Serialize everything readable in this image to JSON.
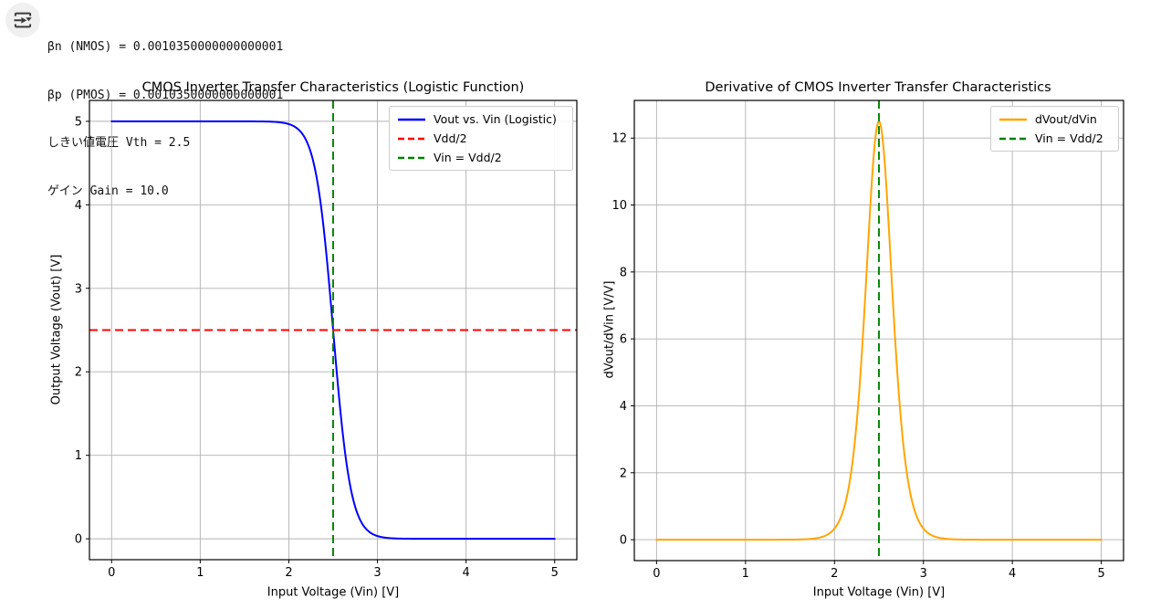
{
  "header": {
    "icon": "run-cell-icon",
    "lines": [
      "βn (NMOS) = 0.0010350000000000001",
      "βp (PMOS) = 0.0010350000000000001",
      "しきい値電圧 Vth = 2.5",
      "ゲイン Gain = 10.0"
    ]
  },
  "colors": {
    "vout_curve": "#0000ff",
    "vdd_half_line": "#ff0000",
    "vin_marker_line": "#008000",
    "derivative_curve": "#ffa500",
    "gridline": "#b0b0b0",
    "spine": "#000000",
    "icon_button_bg": "#f0f0f0",
    "icon_glyph": "#3c3c3c"
  },
  "chart_data": [
    {
      "type": "line",
      "title": "CMOS Inverter Transfer Characteristics (Logistic Function)",
      "xlabel": "Input Voltage (Vin) [V]",
      "ylabel": "Output Voltage (Vout) [V]",
      "xlim": [
        -0.25,
        5.25
      ],
      "ylim": [
        -0.25,
        5.25
      ],
      "xticks": [
        0,
        1,
        2,
        3,
        4,
        5
      ],
      "yticks": [
        0,
        1,
        2,
        3,
        4,
        5
      ],
      "xtick_labels": [
        "0",
        "1",
        "2",
        "3",
        "4",
        "5"
      ],
      "ytick_labels": [
        "0",
        "1",
        "2",
        "3",
        "4",
        "5"
      ],
      "grid": true,
      "legend_position": "upper right",
      "series": [
        {
          "name": "Vout vs. Vin (Logistic)",
          "color": "#0000ff",
          "style": "solid",
          "kind": "logistic",
          "params": {
            "vdd": 5.0,
            "vth": 2.5,
            "gain": 10.0
          },
          "x_range": [
            0,
            5
          ],
          "sample_x": [
            0,
            0.25,
            0.5,
            0.75,
            1,
            1.25,
            1.5,
            1.75,
            2,
            2.25,
            2.5,
            2.75,
            3,
            3.25,
            3.5,
            3.75,
            4,
            4.25,
            4.5,
            4.75,
            5
          ],
          "sample_y": [
            5.0,
            5.0,
            5.0,
            5.0,
            5.0,
            5.0,
            5.0,
            4.997,
            4.967,
            4.621,
            2.5,
            0.379,
            0.033,
            0.003,
            0.0,
            0.0,
            0.0,
            0.0,
            0.0,
            0.0,
            0.0
          ]
        },
        {
          "name": "Vdd/2",
          "color": "#ff0000",
          "style": "dashed",
          "kind": "hline",
          "y": 2.5
        },
        {
          "name": "Vin = Vdd/2",
          "color": "#008000",
          "style": "dashed",
          "kind": "vline",
          "x": 2.5
        }
      ]
    },
    {
      "type": "line",
      "title": "Derivative of CMOS Inverter Transfer Characteristics",
      "xlabel": "Input Voltage (Vin) [V]",
      "ylabel": "dVout/dVin [V/V]",
      "xlim": [
        -0.25,
        5.25
      ],
      "ylim": [
        -0.625,
        13.125
      ],
      "xticks": [
        0,
        1,
        2,
        3,
        4,
        5
      ],
      "yticks": [
        0,
        2,
        4,
        6,
        8,
        10,
        12
      ],
      "xtick_labels": [
        "0",
        "1",
        "2",
        "3",
        "4",
        "5"
      ],
      "ytick_labels": [
        "0",
        "2",
        "4",
        "6",
        "8",
        "10",
        "12"
      ],
      "grid": true,
      "legend_position": "upper right",
      "series": [
        {
          "name": "dVout/dVin",
          "color": "#ffa500",
          "style": "solid",
          "kind": "logistic_derivative",
          "params": {
            "vdd": 5.0,
            "vth": 2.5,
            "gain": 10.0
          },
          "peak_value": 12.5,
          "peak_x": 2.5,
          "x_range": [
            0,
            5
          ],
          "sample_x": [
            0,
            0.25,
            0.5,
            0.75,
            1,
            1.25,
            1.5,
            1.75,
            2,
            2.25,
            2.5,
            2.75,
            3,
            3.25,
            3.5,
            3.75,
            4,
            4.25,
            4.5,
            4.75,
            5
          ],
          "sample_y": [
            0.0,
            0.0,
            0.0,
            0.0,
            0.0,
            0.0,
            0.002,
            0.028,
            0.332,
            3.5,
            12.5,
            3.5,
            0.332,
            0.028,
            0.002,
            0.0,
            0.0,
            0.0,
            0.0,
            0.0,
            0.0
          ]
        },
        {
          "name": "Vin = Vdd/2",
          "color": "#008000",
          "style": "dashed",
          "kind": "vline",
          "x": 2.5
        }
      ]
    }
  ]
}
